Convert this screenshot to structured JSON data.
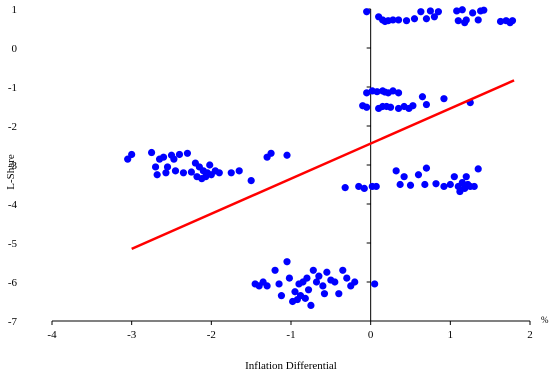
{
  "chart_data": {
    "type": "scatter",
    "xlabel": "Inflation Differential",
    "ylabel": "L-Share",
    "x_unit_label": "%",
    "xlim": [
      -4,
      2
    ],
    "ylim": [
      -7,
      1
    ],
    "x_ticks": [
      -4,
      -3,
      -2,
      -1,
      0,
      1,
      2
    ],
    "y_ticks": [
      1,
      0,
      -1,
      -2,
      -3,
      -4,
      -5,
      -6,
      -7
    ],
    "grid": false,
    "colors": {
      "points": "#0000ff",
      "trendline": "#ff0000",
      "axes": "#000000"
    },
    "trendline": {
      "x": [
        -3.0,
        1.8
      ],
      "y": [
        -5.15,
        -0.83
      ]
    },
    "series": [
      {
        "values": [
          {
            "x": -0.05,
            "y": 0.93
          },
          {
            "x": 0.1,
            "y": 0.8
          },
          {
            "x": 0.15,
            "y": 0.72
          },
          {
            "x": 0.18,
            "y": 0.68
          },
          {
            "x": 0.22,
            "y": 0.7
          },
          {
            "x": 0.28,
            "y": 0.72
          },
          {
            "x": 0.35,
            "y": 0.72
          },
          {
            "x": 0.45,
            "y": 0.7
          },
          {
            "x": 0.55,
            "y": 0.75
          },
          {
            "x": 0.63,
            "y": 0.93
          },
          {
            "x": 0.7,
            "y": 0.75
          },
          {
            "x": 0.75,
            "y": 0.95
          },
          {
            "x": 0.8,
            "y": 0.8
          },
          {
            "x": 0.85,
            "y": 0.93
          },
          {
            "x": 1.08,
            "y": 0.95
          },
          {
            "x": 1.1,
            "y": 0.7
          },
          {
            "x": 1.15,
            "y": 0.98
          },
          {
            "x": 1.18,
            "y": 0.65
          },
          {
            "x": 1.2,
            "y": 0.72
          },
          {
            "x": 1.28,
            "y": 0.9
          },
          {
            "x": 1.35,
            "y": 0.72
          },
          {
            "x": 1.38,
            "y": 0.95
          },
          {
            "x": 1.42,
            "y": 0.97
          },
          {
            "x": 1.63,
            "y": 0.68
          },
          {
            "x": 1.7,
            "y": 0.7
          },
          {
            "x": 1.75,
            "y": 0.65
          },
          {
            "x": 1.78,
            "y": 0.7
          },
          {
            "x": -0.05,
            "y": -1.15
          },
          {
            "x": 0.02,
            "y": -1.1
          },
          {
            "x": 0.08,
            "y": -1.12
          },
          {
            "x": 0.15,
            "y": -1.1
          },
          {
            "x": 0.18,
            "y": -1.13
          },
          {
            "x": 0.22,
            "y": -1.15
          },
          {
            "x": 0.28,
            "y": -1.1
          },
          {
            "x": 0.35,
            "y": -1.15
          },
          {
            "x": -0.1,
            "y": -1.48
          },
          {
            "x": -0.05,
            "y": -1.52
          },
          {
            "x": 0.1,
            "y": -1.55
          },
          {
            "x": 0.15,
            "y": -1.5
          },
          {
            "x": 0.2,
            "y": -1.5
          },
          {
            "x": 0.25,
            "y": -1.52
          },
          {
            "x": 0.35,
            "y": -1.55
          },
          {
            "x": 0.42,
            "y": -1.5
          },
          {
            "x": 0.48,
            "y": -1.55
          },
          {
            "x": 0.53,
            "y": -1.48
          },
          {
            "x": 0.65,
            "y": -1.25
          },
          {
            "x": 0.7,
            "y": -1.45
          },
          {
            "x": 0.92,
            "y": -1.3
          },
          {
            "x": 1.25,
            "y": -1.4
          },
          {
            "x": -3.05,
            "y": -2.85
          },
          {
            "x": -3.0,
            "y": -2.73
          },
          {
            "x": -2.75,
            "y": -2.68
          },
          {
            "x": -2.7,
            "y": -3.05
          },
          {
            "x": -2.68,
            "y": -3.25
          },
          {
            "x": -2.65,
            "y": -2.85
          },
          {
            "x": -2.6,
            "y": -2.8
          },
          {
            "x": -2.57,
            "y": -3.2
          },
          {
            "x": -2.55,
            "y": -3.05
          },
          {
            "x": -2.5,
            "y": -2.75
          },
          {
            "x": -2.47,
            "y": -2.85
          },
          {
            "x": -2.45,
            "y": -3.15
          },
          {
            "x": -2.4,
            "y": -2.73
          },
          {
            "x": -2.35,
            "y": -3.2
          },
          {
            "x": -2.3,
            "y": -2.7
          },
          {
            "x": -2.25,
            "y": -3.18
          },
          {
            "x": -2.2,
            "y": -2.95
          },
          {
            "x": -2.18,
            "y": -3.3
          },
          {
            "x": -2.15,
            "y": -3.05
          },
          {
            "x": -2.12,
            "y": -3.35
          },
          {
            "x": -2.1,
            "y": -3.15
          },
          {
            "x": -2.07,
            "y": -3.3
          },
          {
            "x": -2.05,
            "y": -3.2
          },
          {
            "x": -2.02,
            "y": -3.0
          },
          {
            "x": -2.0,
            "y": -3.25
          },
          {
            "x": -1.95,
            "y": -3.15
          },
          {
            "x": -1.9,
            "y": -3.2
          },
          {
            "x": -1.75,
            "y": -3.2
          },
          {
            "x": -1.65,
            "y": -3.15
          },
          {
            "x": -1.5,
            "y": -3.4
          },
          {
            "x": -1.3,
            "y": -2.8
          },
          {
            "x": -1.25,
            "y": -2.7
          },
          {
            "x": -1.05,
            "y": -2.75
          },
          {
            "x": -0.32,
            "y": -3.58
          },
          {
            "x": -0.15,
            "y": -3.55
          },
          {
            "x": -0.08,
            "y": -3.6
          },
          {
            "x": 0.02,
            "y": -3.55
          },
          {
            "x": 0.07,
            "y": -3.55
          },
          {
            "x": 0.32,
            "y": -3.15
          },
          {
            "x": 0.37,
            "y": -3.5
          },
          {
            "x": 0.42,
            "y": -3.3
          },
          {
            "x": 0.5,
            "y": -3.52
          },
          {
            "x": 0.6,
            "y": -3.25
          },
          {
            "x": 0.68,
            "y": -3.5
          },
          {
            "x": 0.7,
            "y": -3.08
          },
          {
            "x": 0.82,
            "y": -3.48
          },
          {
            "x": 0.92,
            "y": -3.55
          },
          {
            "x": 1.0,
            "y": -3.5
          },
          {
            "x": 1.05,
            "y": -3.3
          },
          {
            "x": 1.1,
            "y": -3.55
          },
          {
            "x": 1.12,
            "y": -3.68
          },
          {
            "x": 1.15,
            "y": -3.45
          },
          {
            "x": 1.18,
            "y": -3.6
          },
          {
            "x": 1.2,
            "y": -3.3
          },
          {
            "x": 1.22,
            "y": -3.5
          },
          {
            "x": 1.25,
            "y": -3.55
          },
          {
            "x": 1.3,
            "y": -3.55
          },
          {
            "x": 1.35,
            "y": -3.1
          },
          {
            "x": -1.45,
            "y": -6.05
          },
          {
            "x": -1.4,
            "y": -6.1
          },
          {
            "x": -1.35,
            "y": -6.0
          },
          {
            "x": -1.3,
            "y": -6.1
          },
          {
            "x": -1.2,
            "y": -5.7
          },
          {
            "x": -1.15,
            "y": -6.05
          },
          {
            "x": -1.12,
            "y": -6.35
          },
          {
            "x": -1.05,
            "y": -5.48
          },
          {
            "x": -1.02,
            "y": -5.9
          },
          {
            "x": -0.98,
            "y": -6.5
          },
          {
            "x": -0.95,
            "y": -6.25
          },
          {
            "x": -0.92,
            "y": -6.45
          },
          {
            "x": -0.9,
            "y": -6.05
          },
          {
            "x": -0.88,
            "y": -6.35
          },
          {
            "x": -0.85,
            "y": -6.0
          },
          {
            "x": -0.82,
            "y": -6.42
          },
          {
            "x": -0.8,
            "y": -5.9
          },
          {
            "x": -0.78,
            "y": -6.2
          },
          {
            "x": -0.75,
            "y": -6.6
          },
          {
            "x": -0.72,
            "y": -5.7
          },
          {
            "x": -0.68,
            "y": -6.0
          },
          {
            "x": -0.65,
            "y": -5.85
          },
          {
            "x": -0.6,
            "y": -6.1
          },
          {
            "x": -0.58,
            "y": -6.3
          },
          {
            "x": -0.55,
            "y": -5.75
          },
          {
            "x": -0.5,
            "y": -5.95
          },
          {
            "x": -0.45,
            "y": -6.0
          },
          {
            "x": -0.4,
            "y": -6.3
          },
          {
            "x": -0.35,
            "y": -5.7
          },
          {
            "x": -0.3,
            "y": -5.9
          },
          {
            "x": -0.25,
            "y": -6.1
          },
          {
            "x": -0.2,
            "y": -6.0
          },
          {
            "x": 0.05,
            "y": -6.05
          }
        ]
      }
    ]
  }
}
